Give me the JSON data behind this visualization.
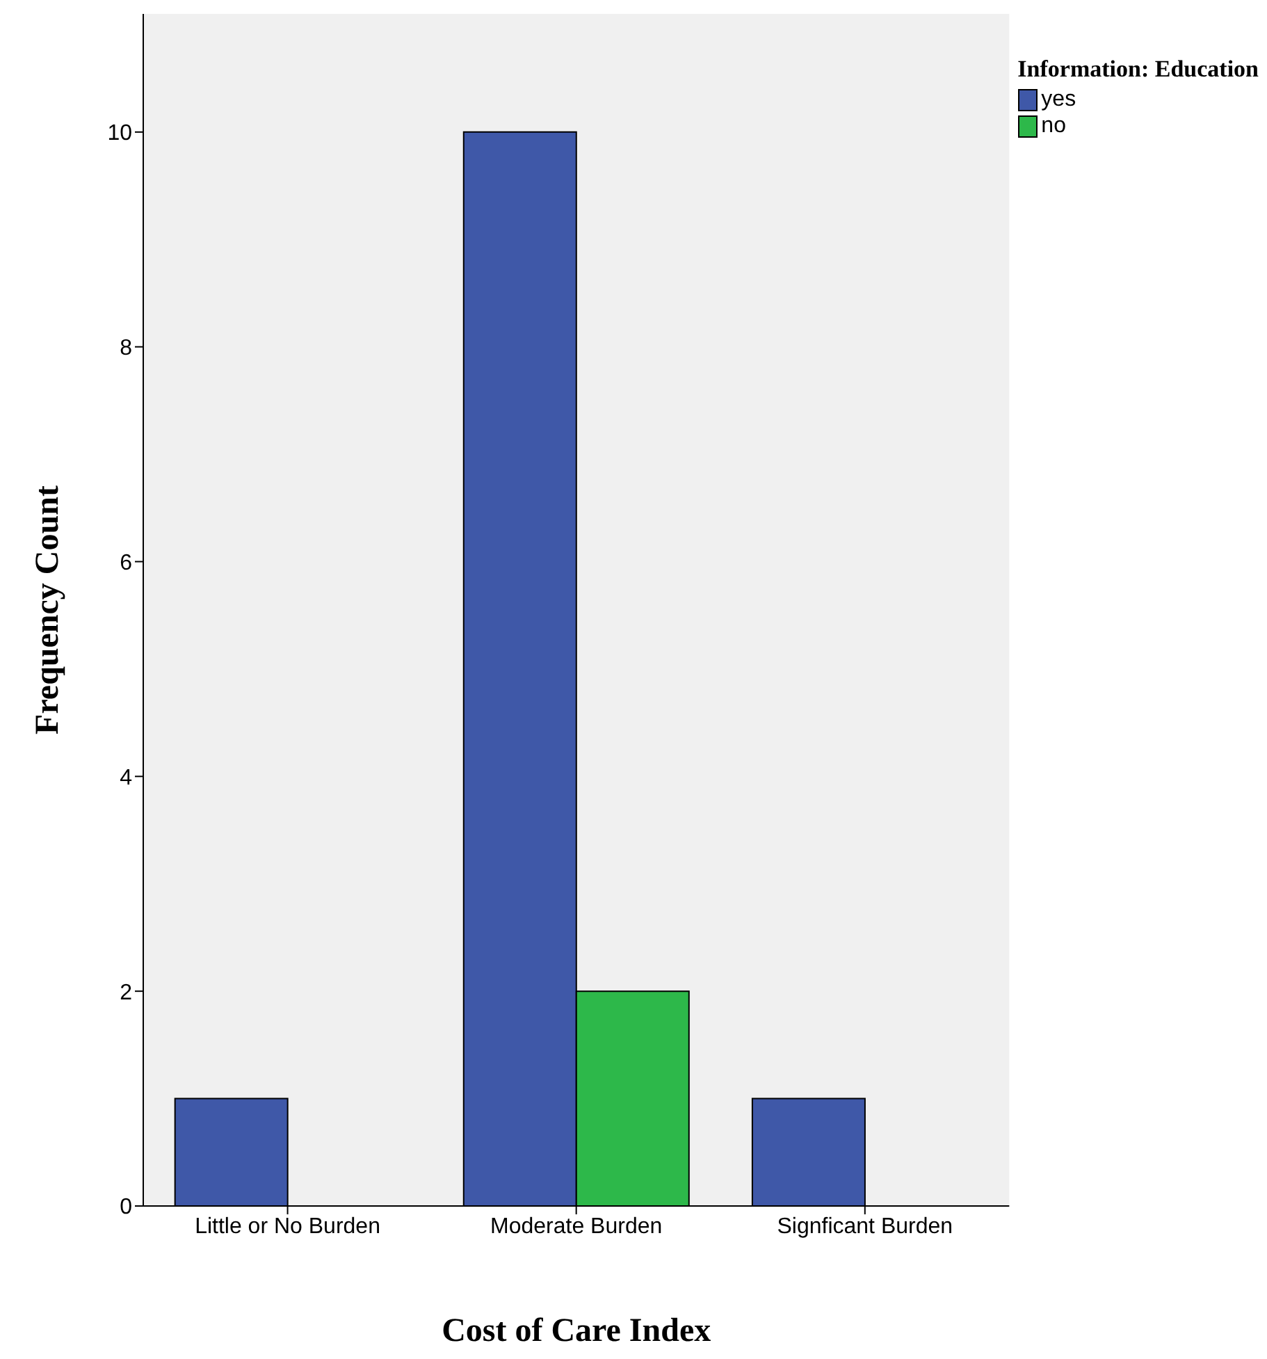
{
  "chart_data": {
    "type": "bar",
    "xlabel": "Cost of Care Index",
    "ylabel": "Frequency Count",
    "legend_title": "Information: Education",
    "categories": [
      "Little or No Burden",
      "Moderate Burden",
      "Signficant Burden"
    ],
    "series": [
      {
        "name": "yes",
        "color": "#3f58a8",
        "values": [
          1,
          10,
          1
        ]
      },
      {
        "name": "no",
        "color": "#2db84a",
        "values": [
          0,
          2,
          0
        ]
      }
    ],
    "ylim": [
      0,
      11.1
    ],
    "yticks": [
      0,
      2,
      4,
      6,
      8,
      10
    ],
    "grid": false,
    "legend": "top right"
  }
}
